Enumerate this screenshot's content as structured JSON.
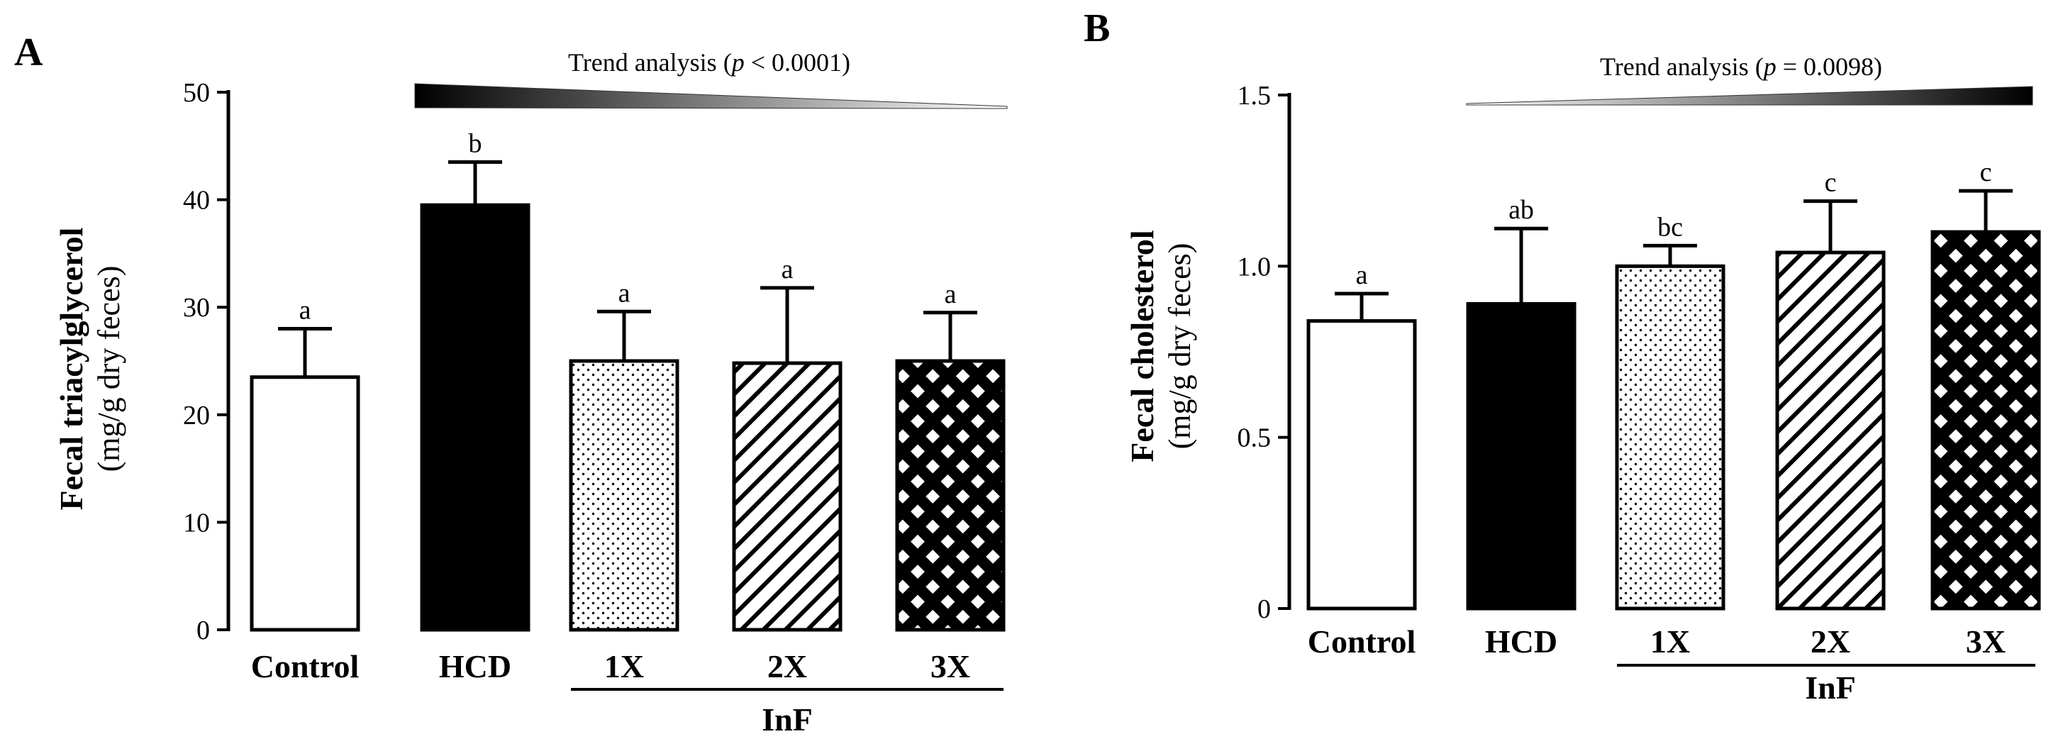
{
  "chart_data": [
    {
      "panel": "A",
      "type": "bar",
      "title": "",
      "ylabel_bold": "Fecal triacylglycerol",
      "ylabel_unit": "(mg/g dry feces)",
      "xlabel": "",
      "group_label": "InF",
      "categories": [
        "Control",
        "HCD",
        "1X",
        "2X",
        "3X"
      ],
      "values": [
        23.5,
        39.5,
        25.0,
        24.8,
        25.0
      ],
      "errors": [
        4.5,
        4.0,
        4.6,
        7.0,
        4.5
      ],
      "significance": [
        "a",
        "b",
        "a",
        "a",
        "a"
      ],
      "patterns": [
        "white",
        "black",
        "dots",
        "hatch",
        "checker"
      ],
      "ylim": [
        0,
        50
      ],
      "yticks": [
        0,
        10,
        20,
        30,
        40,
        50
      ],
      "ytick_labels": [
        "0",
        "10",
        "20",
        "30",
        "40",
        "50"
      ],
      "trend": {
        "prefix": "Trend analysis (",
        "p": "p",
        "suffix": " < 0.0001)",
        "direction": "decreasing"
      }
    },
    {
      "panel": "B",
      "type": "bar",
      "title": "",
      "ylabel_bold": "Fecal cholesterol",
      "ylabel_unit": "(mg/g dry feces)",
      "xlabel": "",
      "group_label": "InF",
      "categories": [
        "Control",
        "HCD",
        "1X",
        "2X",
        "3X"
      ],
      "values": [
        0.84,
        0.89,
        1.0,
        1.04,
        1.1
      ],
      "errors": [
        0.08,
        0.22,
        0.06,
        0.15,
        0.12
      ],
      "significance": [
        "a",
        "ab",
        "bc",
        "c",
        "c"
      ],
      "patterns": [
        "white",
        "black",
        "dots",
        "hatch",
        "checker"
      ],
      "ylim": [
        0,
        1.5
      ],
      "yticks": [
        0,
        0.5,
        1.0,
        1.5
      ],
      "ytick_labels": [
        "0",
        "0.5",
        "1.0",
        "1.5"
      ],
      "trend": {
        "prefix": "Trend analysis (",
        "p": "p",
        "suffix": " = 0.0098)",
        "direction": "increasing"
      }
    }
  ]
}
